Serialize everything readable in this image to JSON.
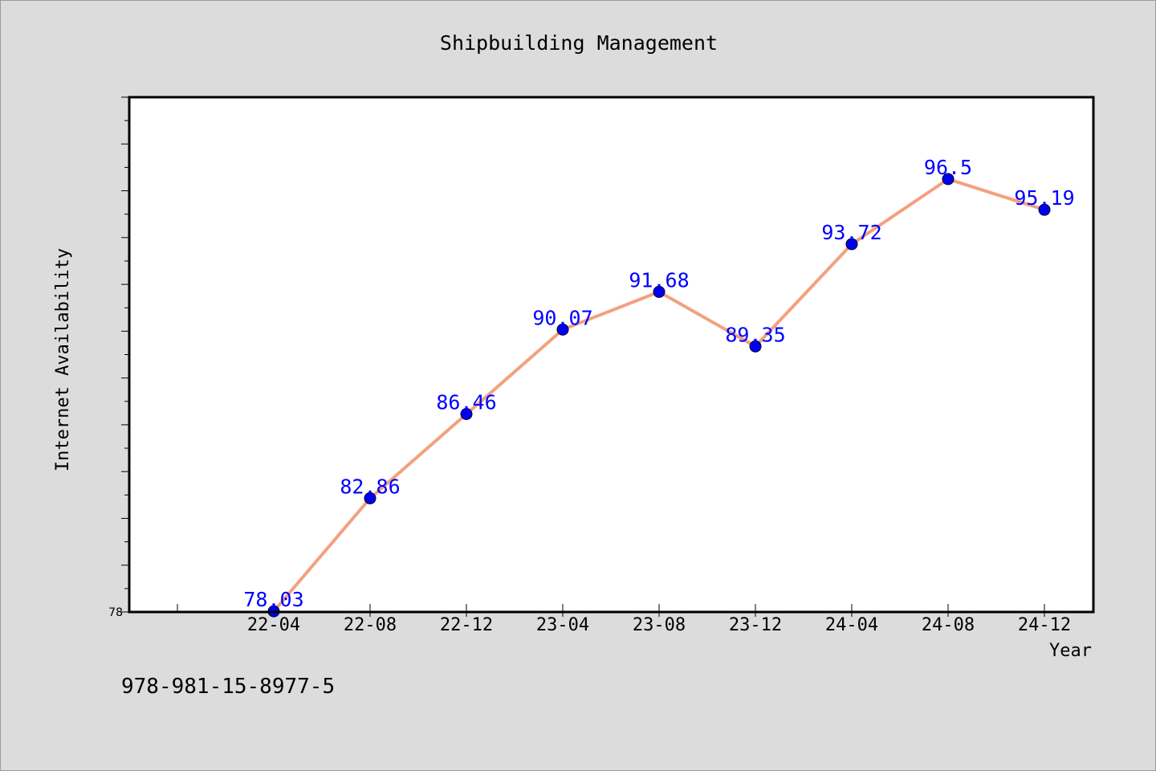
{
  "chart_data": {
    "type": "line",
    "title": "Shipbuilding Management",
    "xlabel": "Year",
    "ylabel": "Internet Availability",
    "categories": [
      "22-04",
      "22-08",
      "22-12",
      "23-04",
      "23-08",
      "23-12",
      "24-04",
      "24-08",
      "24-12"
    ],
    "series": [
      {
        "values": [
          78.03,
          82.86,
          86.46,
          90.07,
          91.68,
          89.35,
          93.72,
          96.5,
          95.19
        ]
      }
    ],
    "data_labels": [
      "78.03",
      "82.86",
      "86.46",
      "90.07",
      "91.68",
      "89.35",
      "93.72",
      "96.5",
      "95.19"
    ],
    "ylim": [
      78,
      100
    ],
    "y_tick_label": "78",
    "grid": false,
    "line_color": "#f4a07f",
    "marker_color": "#0000ee",
    "label_color": "#0000ff",
    "plot_background": "#ffffff",
    "figure_background": "#dcdcdc"
  },
  "footer": {
    "isbn": "978-981-15-8977-5"
  }
}
